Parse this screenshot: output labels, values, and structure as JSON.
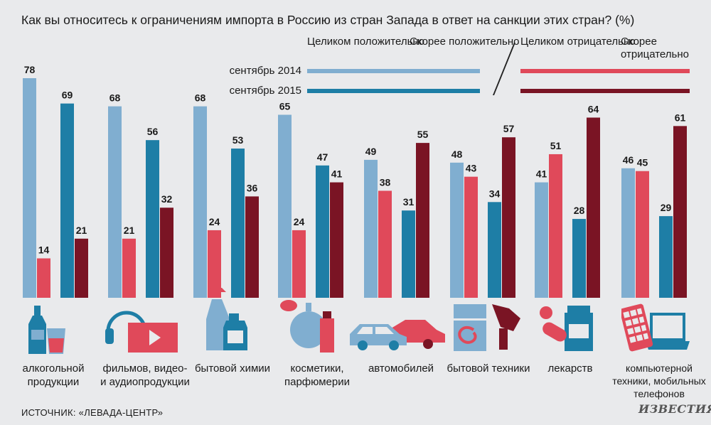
{
  "colors": {
    "full_pos_2014": "#80aed0",
    "full_pos_2015": "#1e7ea6",
    "full_neg_2014": "#e0495a",
    "full_neg_2015": "#7a1424",
    "background": "#e9eaec"
  },
  "legend": {
    "pos_full": "Целиком\nположительно",
    "pos_partial": "Скорее\nположительно",
    "neg_full": "Целиком\nотрицательно",
    "neg_partial": "Скорее\nотрицательно",
    "row_2014": "сентябрь 2014",
    "row_2015": "сентябрь 2015"
  },
  "source": "ИСТОЧНИК: «ЛЕВАДА-ЦЕНТР»",
  "logo": "ИЗВЕСТИЯ",
  "chart_data": {
    "type": "bar",
    "title": "Как вы относитесь к ограничениям импорта в Россию из стран Запада в ответ на санкции этих стран? (%)",
    "categories": [
      "алкогольной продукции",
      "фильмов, видео- и аудиопродукции",
      "бытовой химии",
      "косметики, парфюмерии",
      "автомобилей",
      "бытовой техники",
      "лекарств",
      "компьютерной техники, мобильных телефонов"
    ],
    "category_labels": [
      "алкогольной\nпродукции",
      "фильмов, видео-\nи аудиопродукции",
      "бытовой химии",
      "косметики,\nпарфюмерии",
      "автомобилей",
      "бытовой техники",
      "лекарств",
      "компьютерной\nтехники, мобильных\nтелефонов"
    ],
    "series": [
      {
        "name": "положительно, сентябрь 2014",
        "color": "#80aed0",
        "values": [
          78,
          68,
          68,
          65,
          49,
          48,
          41,
          46
        ]
      },
      {
        "name": "отрицательно, сентябрь 2014",
        "color": "#e0495a",
        "values": [
          14,
          21,
          24,
          24,
          38,
          43,
          51,
          45
        ]
      },
      {
        "name": "положительно, сентябрь 2015",
        "color": "#1e7ea6",
        "values": [
          69,
          56,
          53,
          47,
          31,
          34,
          28,
          29
        ]
      },
      {
        "name": "отрицательно, сентябрь 2015",
        "color": "#7a1424",
        "values": [
          21,
          32,
          36,
          41,
          55,
          57,
          64,
          61
        ]
      }
    ],
    "ylim": [
      0,
      80
    ],
    "grid": false,
    "data_labels": true
  }
}
